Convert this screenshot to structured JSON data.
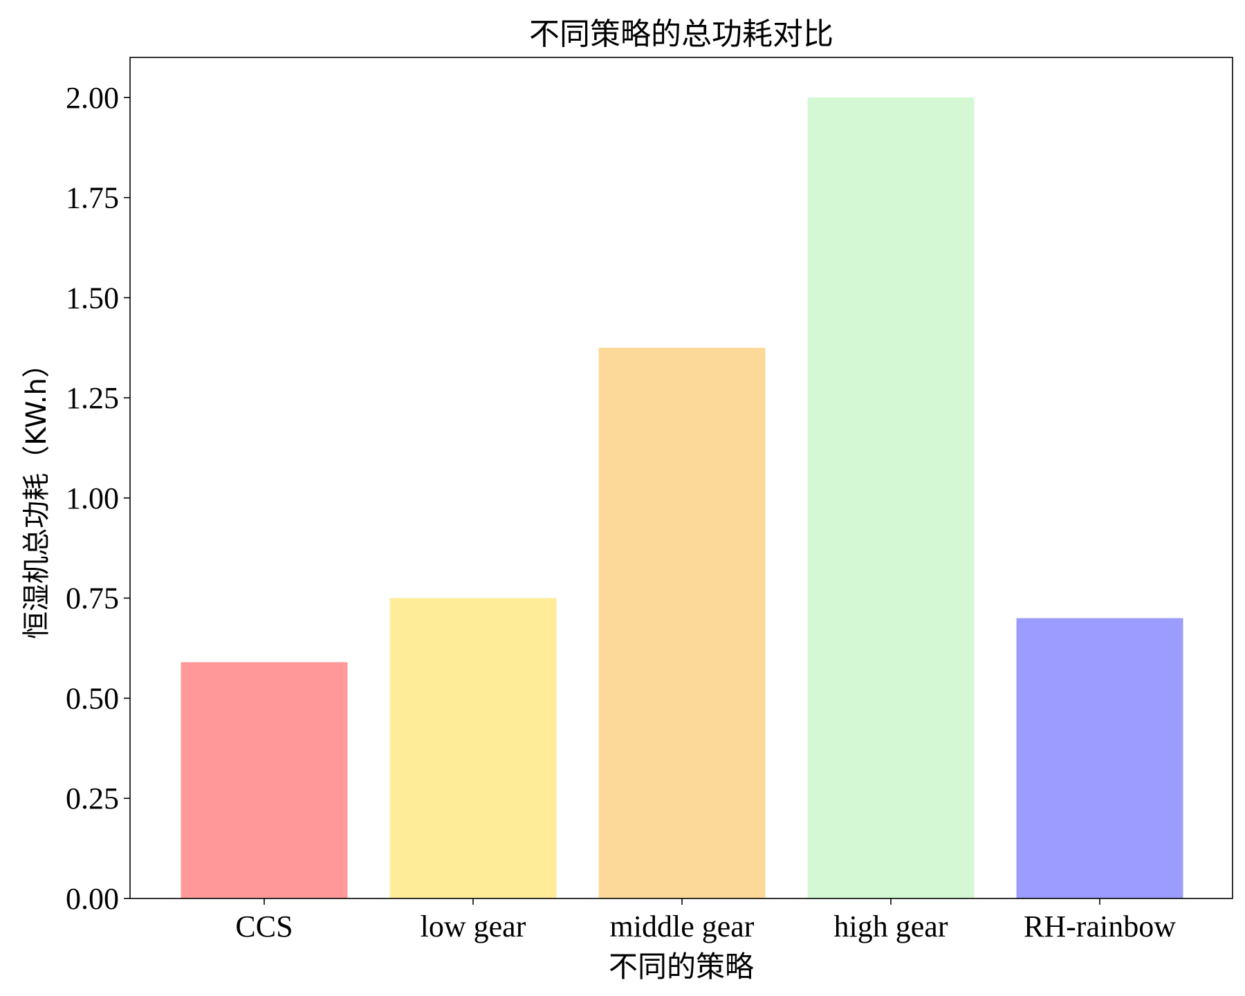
{
  "chart_data": {
    "type": "bar",
    "title": "不同策略的总功耗对比",
    "xlabel": "不同的策略",
    "ylabel": "恒湿机总功耗（KW.h）",
    "categories": [
      "CCS",
      "low gear",
      "middle gear",
      "high gear",
      "RH-rainbow"
    ],
    "values": [
      0.59,
      0.75,
      1.375,
      2.0,
      0.7
    ],
    "colors": [
      "#ff9999",
      "#ffec99",
      "#fdd999",
      "#d3f8d3",
      "#9c9cff"
    ],
    "ylim": [
      0,
      2.1
    ],
    "yticks": [
      0.0,
      0.25,
      0.5,
      0.75,
      1.0,
      1.25,
      1.5,
      1.75,
      2.0
    ],
    "ytick_labels": [
      "0.00",
      "0.25",
      "0.50",
      "0.75",
      "1.00",
      "1.25",
      "1.50",
      "1.75",
      "2.00"
    ],
    "grid": false,
    "legend": "none"
  }
}
